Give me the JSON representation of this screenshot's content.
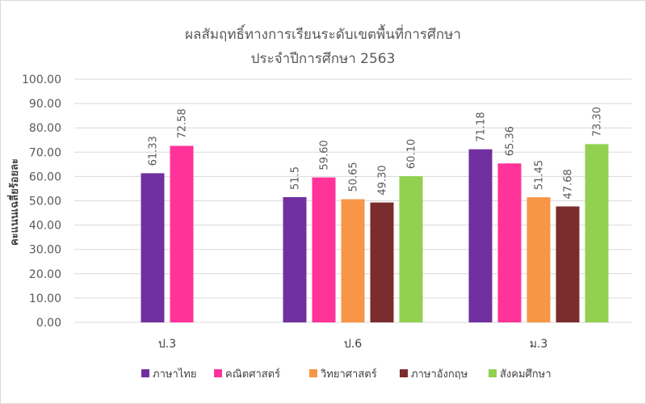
{
  "chart_data": {
    "type": "bar",
    "title": "ผลสัมฤทธิ์ทางการเรียนระดับเขตพื้นที่การศึกษา",
    "subtitle": "ประจำปีการศึกษา 2563",
    "xlabel": "",
    "ylabel": "คะแนนเฉลี่ยร้อยละ",
    "ylim": [
      0,
      100
    ],
    "y_ticks": [
      "0.00",
      "10.00",
      "20.00",
      "30.00",
      "40.00",
      "50.00",
      "60.00",
      "70.00",
      "80.00",
      "90.00",
      "100.00"
    ],
    "grid": true,
    "legend_position": "bottom",
    "categories": [
      "ป.3",
      "ป.6",
      "ม.3"
    ],
    "series": [
      {
        "name": "ภาษาไทย",
        "color": "#7030a0",
        "values": [
          61.33,
          51.5,
          71.18
        ],
        "labels": [
          "61.33",
          "51.5",
          "71.18"
        ]
      },
      {
        "name": "คณิตศาสตร์",
        "color": "#ff3399",
        "values": [
          72.58,
          59.6,
          65.36
        ],
        "labels": [
          "72.58",
          "59.60",
          "65.36"
        ]
      },
      {
        "name": "วิทยาศาสตร์",
        "color": "#f79646",
        "values": [
          null,
          50.65,
          51.45
        ],
        "labels": [
          "",
          "50.65",
          "51.45"
        ]
      },
      {
        "name": "ภาษาอังกฤษ",
        "color": "#7b2c2c",
        "values": [
          null,
          49.3,
          47.68
        ],
        "labels": [
          "",
          "49.30",
          "47.68"
        ]
      },
      {
        "name": "สังคมศึกษา",
        "color": "#92d050",
        "values": [
          null,
          60.1,
          73.3
        ],
        "labels": [
          "",
          "60.10",
          "73.30"
        ]
      }
    ]
  }
}
